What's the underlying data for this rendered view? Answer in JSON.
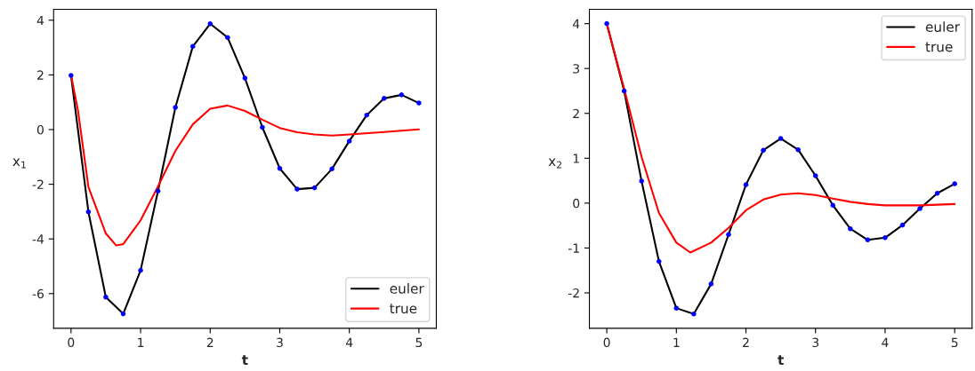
{
  "chart_data": [
    {
      "type": "line",
      "xlabel": "t",
      "ylabel": "x$_{1}$",
      "legend": "bottom right",
      "grid": false,
      "xlim": [
        -0.25,
        5.25
      ],
      "ylim": [
        -7.27,
        4.4
      ],
      "xticks": [
        0,
        1,
        2,
        3,
        4,
        5
      ],
      "yticks": [
        -6,
        -4,
        -2,
        0,
        2,
        4
      ],
      "series": [
        {
          "name": "euler",
          "color": "#000000",
          "marker": "none",
          "x": [
            0,
            0.25,
            0.5,
            0.75,
            1,
            1.25,
            1.5,
            1.75,
            2,
            2.25,
            2.5,
            2.75,
            3,
            3.25,
            3.5,
            3.75,
            4,
            4.25,
            4.5,
            4.75,
            5
          ],
          "values": [
            1.98,
            -3.01,
            -6.13,
            -6.74,
            -5.15,
            -2.25,
            0.81,
            3.04,
            3.87,
            3.37,
            1.88,
            0.08,
            -1.42,
            -2.18,
            -2.13,
            -1.44,
            -0.42,
            0.53,
            1.14,
            1.27,
            0.97
          ]
        },
        {
          "type": "scatter",
          "color": "#0000ff",
          "marker": "circle",
          "x": [
            0,
            0.25,
            0.5,
            0.75,
            1,
            1.25,
            1.5,
            1.75,
            2,
            2.25,
            2.5,
            2.75,
            3,
            3.25,
            3.5,
            3.75,
            4,
            4.25,
            4.5,
            4.75,
            5
          ],
          "values": [
            1.98,
            -3.01,
            -6.13,
            -6.74,
            -5.15,
            -2.25,
            0.81,
            3.04,
            3.87,
            3.37,
            1.88,
            0.08,
            -1.42,
            -2.18,
            -2.13,
            -1.44,
            -0.42,
            0.53,
            1.14,
            1.27,
            0.97
          ]
        },
        {
          "name": "true",
          "color": "#ff0000",
          "marker": "none",
          "x": [
            0,
            0.1,
            0.25,
            0.5,
            0.65,
            0.75,
            1,
            1.25,
            1.5,
            1.75,
            2,
            2.25,
            2.5,
            2.75,
            3,
            3.25,
            3.5,
            3.75,
            4,
            4.5,
            5
          ],
          "values": [
            2.0,
            0.7,
            -2.1,
            -3.8,
            -4.24,
            -4.19,
            -3.32,
            -2.08,
            -0.78,
            0.19,
            0.76,
            0.88,
            0.68,
            0.36,
            0.06,
            -0.1,
            -0.18,
            -0.22,
            -0.18,
            -0.09,
            0.01
          ]
        }
      ]
    },
    {
      "type": "line",
      "xlabel": "t",
      "ylabel": "x$_{2}$",
      "legend": "top right",
      "grid": false,
      "xlim": [
        -0.25,
        5.25
      ],
      "ylim": [
        -2.79,
        4.32
      ],
      "xticks": [
        0,
        1,
        2,
        3,
        4,
        5
      ],
      "yticks": [
        -2,
        -1,
        0,
        1,
        2,
        3,
        4
      ],
      "series": [
        {
          "name": "euler",
          "color": "#000000",
          "marker": "none",
          "x": [
            0,
            0.25,
            0.5,
            0.75,
            1,
            1.25,
            1.5,
            1.75,
            2,
            2.25,
            2.5,
            2.75,
            3,
            3.25,
            3.5,
            3.75,
            4,
            4.25,
            4.5,
            4.75,
            5
          ],
          "values": [
            4.0,
            2.5,
            0.49,
            -1.3,
            -2.34,
            -2.47,
            -1.8,
            -0.7,
            0.41,
            1.18,
            1.44,
            1.19,
            0.61,
            -0.05,
            -0.57,
            -0.82,
            -0.77,
            -0.49,
            -0.12,
            0.22,
            0.43
          ]
        },
        {
          "type": "scatter",
          "color": "#0000ff",
          "marker": "circle",
          "x": [
            0,
            0.25,
            0.5,
            0.75,
            1,
            1.25,
            1.5,
            1.75,
            2,
            2.25,
            2.5,
            2.75,
            3,
            3.25,
            3.5,
            3.75,
            4,
            4.25,
            4.5,
            4.75,
            5
          ],
          "values": [
            4.0,
            2.5,
            0.49,
            -1.3,
            -2.34,
            -2.47,
            -1.8,
            -0.7,
            0.41,
            1.18,
            1.44,
            1.19,
            0.61,
            -0.05,
            -0.57,
            -0.82,
            -0.77,
            -0.49,
            -0.12,
            0.22,
            0.43
          ]
        },
        {
          "name": "true",
          "color": "#ff0000",
          "marker": "none",
          "x": [
            0,
            0.25,
            0.5,
            0.75,
            1,
            1.2,
            1.5,
            1.75,
            2,
            2.25,
            2.5,
            2.75,
            3,
            3.25,
            3.5,
            3.75,
            4,
            4.5,
            5
          ],
          "values": [
            4.0,
            2.55,
            1.03,
            -0.22,
            -0.88,
            -1.1,
            -0.88,
            -0.55,
            -0.16,
            0.08,
            0.19,
            0.22,
            0.18,
            0.1,
            0.03,
            -0.02,
            -0.05,
            -0.05,
            -0.02
          ]
        }
      ]
    }
  ]
}
